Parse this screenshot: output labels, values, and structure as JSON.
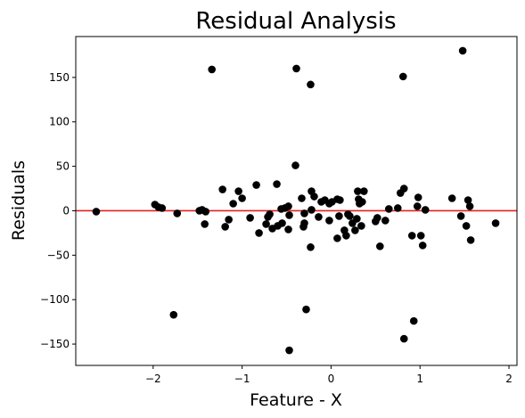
{
  "chart_data": {
    "type": "scatter",
    "title": "Residual Analysis",
    "xlabel": "Feature - X",
    "ylabel": "Residuals",
    "xlim": [
      -2.87,
      2.09
    ],
    "ylim": [
      -174,
      196
    ],
    "xticks": [
      -2,
      -1,
      0,
      1,
      2
    ],
    "xtick_labels": [
      "−2",
      "−1",
      "0",
      "1",
      "2"
    ],
    "yticks": [
      -150,
      -100,
      -50,
      0,
      50,
      100,
      150
    ],
    "ytick_labels": [
      "−150",
      "−100",
      "−50",
      "0",
      "50",
      "100",
      "150"
    ],
    "grid": false,
    "reference_line": {
      "y": 0,
      "color": "#e02020"
    },
    "marker_color": "#000000",
    "points": [
      [
        -2.64,
        -1
      ],
      [
        -1.98,
        7
      ],
      [
        -1.94,
        4
      ],
      [
        -1.9,
        3
      ],
      [
        -1.77,
        -117
      ],
      [
        -1.73,
        -3
      ],
      [
        -1.48,
        0
      ],
      [
        -1.45,
        1
      ],
      [
        -1.42,
        -15
      ],
      [
        -1.41,
        -1
      ],
      [
        -1.34,
        159
      ],
      [
        -1.22,
        24
      ],
      [
        -1.19,
        -18
      ],
      [
        -1.15,
        -10
      ],
      [
        -1.1,
        8
      ],
      [
        -1.04,
        22
      ],
      [
        -1.0,
        14
      ],
      [
        -0.91,
        -8
      ],
      [
        -0.84,
        29
      ],
      [
        -0.81,
        -25
      ],
      [
        -0.73,
        -15
      ],
      [
        -0.71,
        -7
      ],
      [
        -0.69,
        -4
      ],
      [
        -0.66,
        -20
      ],
      [
        -0.61,
        30
      ],
      [
        -0.6,
        -17
      ],
      [
        -0.56,
        2
      ],
      [
        -0.55,
        -14
      ],
      [
        -0.52,
        3
      ],
      [
        -0.48,
        5
      ],
      [
        -0.48,
        -21
      ],
      [
        -0.47,
        -5
      ],
      [
        -0.47,
        -157
      ],
      [
        -0.39,
        160
      ],
      [
        -0.4,
        51
      ],
      [
        -0.33,
        14
      ],
      [
        -0.31,
        -18
      ],
      [
        -0.3,
        -14
      ],
      [
        -0.3,
        -3
      ],
      [
        -0.28,
        -111
      ],
      [
        -0.23,
        142
      ],
      [
        -0.23,
        -41
      ],
      [
        -0.22,
        22
      ],
      [
        -0.22,
        1
      ],
      [
        -0.19,
        16
      ],
      [
        -0.14,
        -7
      ],
      [
        -0.11,
        10
      ],
      [
        -0.07,
        12
      ],
      [
        -0.02,
        8
      ],
      [
        -0.02,
        -11
      ],
      [
        0.01,
        10
      ],
      [
        0.07,
        13
      ],
      [
        0.07,
        -31
      ],
      [
        0.1,
        12
      ],
      [
        0.09,
        -6
      ],
      [
        0.15,
        -22
      ],
      [
        0.17,
        -28
      ],
      [
        0.19,
        -4
      ],
      [
        0.21,
        -6
      ],
      [
        0.24,
        -14
      ],
      [
        0.27,
        -22
      ],
      [
        0.29,
        -9
      ],
      [
        0.3,
        22
      ],
      [
        0.31,
        13
      ],
      [
        0.32,
        8
      ],
      [
        0.34,
        -17
      ],
      [
        0.35,
        10
      ],
      [
        0.37,
        22
      ],
      [
        0.5,
        -12
      ],
      [
        0.52,
        -8
      ],
      [
        0.55,
        -40
      ],
      [
        0.61,
        -11
      ],
      [
        0.65,
        2
      ],
      [
        0.75,
        3
      ],
      [
        0.78,
        20
      ],
      [
        0.82,
        25
      ],
      [
        0.81,
        151
      ],
      [
        0.82,
        -144
      ],
      [
        0.91,
        -28
      ],
      [
        0.93,
        -124
      ],
      [
        0.97,
        5
      ],
      [
        0.98,
        15
      ],
      [
        1.01,
        -28
      ],
      [
        1.03,
        -39
      ],
      [
        1.06,
        1
      ],
      [
        1.36,
        14
      ],
      [
        1.46,
        -6
      ],
      [
        1.48,
        180
      ],
      [
        1.52,
        -17
      ],
      [
        1.54,
        12
      ],
      [
        1.56,
        5
      ],
      [
        1.57,
        -33
      ],
      [
        1.85,
        -14
      ]
    ]
  }
}
